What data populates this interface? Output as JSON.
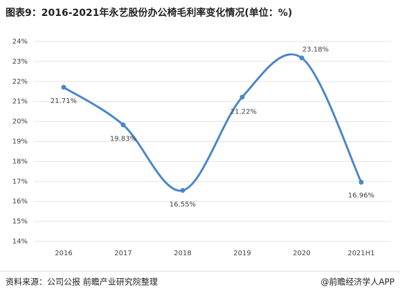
{
  "chart_data": {
    "type": "line",
    "title": "图表9：2016-2021年永艺股份办公椅毛利率变化情况(单位：%)",
    "categories": [
      "2016",
      "2017",
      "2018",
      "2019",
      "2020",
      "2021H1"
    ],
    "series": [
      {
        "name": "毛利率",
        "color": "#4a86c8",
        "values": [
          21.71,
          19.83,
          16.55,
          21.22,
          23.18,
          16.96
        ],
        "value_labels": [
          "21.71%",
          "19.83%",
          "16.55%",
          "21.22%",
          "23.18%",
          "16.96%"
        ]
      }
    ],
    "ylim": [
      14,
      24
    ],
    "yticks": [
      {
        "value": 14,
        "label": "14%"
      },
      {
        "value": 15,
        "label": "15%"
      },
      {
        "value": 16,
        "label": "16%"
      },
      {
        "value": 17,
        "label": "17%"
      },
      {
        "value": 18,
        "label": "18%"
      },
      {
        "value": 19,
        "label": "19%"
      },
      {
        "value": 20,
        "label": "20%"
      },
      {
        "value": 21,
        "label": "21%"
      },
      {
        "value": 22,
        "label": "22%"
      },
      {
        "value": 23,
        "label": "23%"
      },
      {
        "value": 24,
        "label": "24%"
      }
    ],
    "grid": true,
    "smooth": true,
    "source": "资料来源：公司公报 前瞻产业研究院整理",
    "credit": "@前瞻经济学人APP"
  }
}
